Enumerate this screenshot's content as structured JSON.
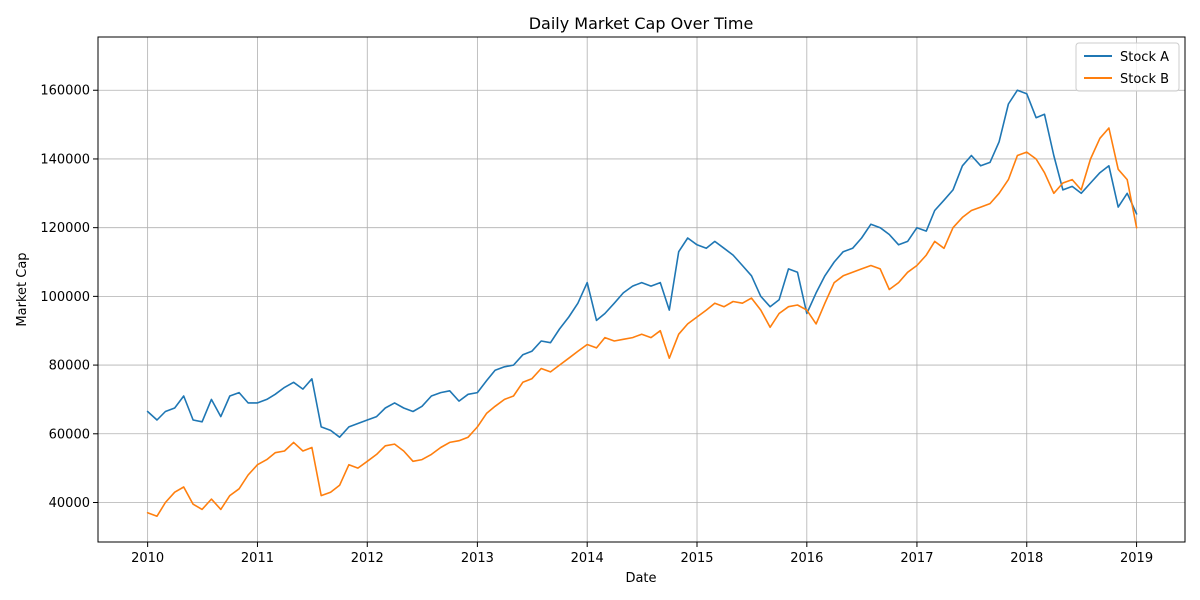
{
  "chart_data": {
    "type": "line",
    "title": "Daily Market Cap Over Time",
    "xlabel": "Date",
    "ylabel": "Market Cap",
    "xlim": [
      "2009-07-20",
      "2019-06-11"
    ],
    "ylim": [
      28500,
      175500
    ],
    "x_ticks": [
      "2010",
      "2011",
      "2012",
      "2013",
      "2014",
      "2015",
      "2016",
      "2017",
      "2018",
      "2019"
    ],
    "y_ticks": [
      40000,
      60000,
      80000,
      100000,
      120000,
      140000,
      160000
    ],
    "grid": true,
    "legend_position": "top-right",
    "series": [
      {
        "name": "Stock A",
        "color": "#1f77b4",
        "points": [
          [
            "2010-01-01",
            66500
          ],
          [
            "2010-02-01",
            64000
          ],
          [
            "2010-03-01",
            66500
          ],
          [
            "2010-04-01",
            67500
          ],
          [
            "2010-05-01",
            71000
          ],
          [
            "2010-06-01",
            64000
          ],
          [
            "2010-07-01",
            63500
          ],
          [
            "2010-08-01",
            70000
          ],
          [
            "2010-09-01",
            65000
          ],
          [
            "2010-10-01",
            71000
          ],
          [
            "2010-11-01",
            72000
          ],
          [
            "2010-12-01",
            69000
          ],
          [
            "2011-01-01",
            69000
          ],
          [
            "2011-02-01",
            70000
          ],
          [
            "2011-03-01",
            71500
          ],
          [
            "2011-04-01",
            73500
          ],
          [
            "2011-05-01",
            75000
          ],
          [
            "2011-06-01",
            73000
          ],
          [
            "2011-07-01",
            76000
          ],
          [
            "2011-08-01",
            62000
          ],
          [
            "2011-09-01",
            61000
          ],
          [
            "2011-10-01",
            59000
          ],
          [
            "2011-11-01",
            62000
          ],
          [
            "2011-12-01",
            63000
          ],
          [
            "2012-01-01",
            64000
          ],
          [
            "2012-02-01",
            65000
          ],
          [
            "2012-03-01",
            67500
          ],
          [
            "2012-04-01",
            69000
          ],
          [
            "2012-05-01",
            67500
          ],
          [
            "2012-06-01",
            66500
          ],
          [
            "2012-07-01",
            68000
          ],
          [
            "2012-08-01",
            71000
          ],
          [
            "2012-09-01",
            72000
          ],
          [
            "2012-10-01",
            72500
          ],
          [
            "2012-11-01",
            69500
          ],
          [
            "2012-12-01",
            71500
          ],
          [
            "2013-01-01",
            72000
          ],
          [
            "2013-02-01",
            75500
          ],
          [
            "2013-03-01",
            78500
          ],
          [
            "2013-04-01",
            79500
          ],
          [
            "2013-05-01",
            80000
          ],
          [
            "2013-06-01",
            83000
          ],
          [
            "2013-07-01",
            84000
          ],
          [
            "2013-08-01",
            87000
          ],
          [
            "2013-09-01",
            86500
          ],
          [
            "2013-10-01",
            90500
          ],
          [
            "2013-11-01",
            94000
          ],
          [
            "2013-12-01",
            98000
          ],
          [
            "2014-01-01",
            104000
          ],
          [
            "2014-02-01",
            93000
          ],
          [
            "2014-03-01",
            95000
          ],
          [
            "2014-04-01",
            98000
          ],
          [
            "2014-05-01",
            101000
          ],
          [
            "2014-06-01",
            103000
          ],
          [
            "2014-07-01",
            104000
          ],
          [
            "2014-08-01",
            103000
          ],
          [
            "2014-09-01",
            104000
          ],
          [
            "2014-10-01",
            96000
          ],
          [
            "2014-11-01",
            113000
          ],
          [
            "2014-12-01",
            117000
          ],
          [
            "2015-01-01",
            115000
          ],
          [
            "2015-02-01",
            114000
          ],
          [
            "2015-03-01",
            116000
          ],
          [
            "2015-04-01",
            114000
          ],
          [
            "2015-05-01",
            112000
          ],
          [
            "2015-06-01",
            109000
          ],
          [
            "2015-07-01",
            106000
          ],
          [
            "2015-08-01",
            100000
          ],
          [
            "2015-09-01",
            97000
          ],
          [
            "2015-10-01",
            99000
          ],
          [
            "2015-11-01",
            108000
          ],
          [
            "2015-12-01",
            107000
          ],
          [
            "2016-01-01",
            95000
          ],
          [
            "2016-02-01",
            101000
          ],
          [
            "2016-03-01",
            106000
          ],
          [
            "2016-04-01",
            110000
          ],
          [
            "2016-05-01",
            113000
          ],
          [
            "2016-06-01",
            114000
          ],
          [
            "2016-07-01",
            117000
          ],
          [
            "2016-08-01",
            121000
          ],
          [
            "2016-09-01",
            120000
          ],
          [
            "2016-10-01",
            118000
          ],
          [
            "2016-11-01",
            115000
          ],
          [
            "2016-12-01",
            116000
          ],
          [
            "2017-01-01",
            120000
          ],
          [
            "2017-02-01",
            119000
          ],
          [
            "2017-03-01",
            125000
          ],
          [
            "2017-04-01",
            128000
          ],
          [
            "2017-05-01",
            131000
          ],
          [
            "2017-06-01",
            138000
          ],
          [
            "2017-07-01",
            141000
          ],
          [
            "2017-08-01",
            138000
          ],
          [
            "2017-09-01",
            139000
          ],
          [
            "2017-10-01",
            145000
          ],
          [
            "2017-11-01",
            156000
          ],
          [
            "2017-12-01",
            160000
          ],
          [
            "2018-01-01",
            159000
          ],
          [
            "2018-02-01",
            152000
          ],
          [
            "2018-03-01",
            153000
          ],
          [
            "2018-04-01",
            141000
          ],
          [
            "2018-05-01",
            131000
          ],
          [
            "2018-06-01",
            132000
          ],
          [
            "2018-07-01",
            130000
          ],
          [
            "2018-08-01",
            133000
          ],
          [
            "2018-09-01",
            136000
          ],
          [
            "2018-10-01",
            138000
          ],
          [
            "2018-11-01",
            126000
          ],
          [
            "2018-12-01",
            130000
          ],
          [
            "2019-01-01",
            124000
          ]
        ]
      },
      {
        "name": "Stock B",
        "color": "#ff7f0e",
        "points": [
          [
            "2010-01-01",
            37000
          ],
          [
            "2010-02-01",
            36000
          ],
          [
            "2010-03-01",
            40000
          ],
          [
            "2010-04-01",
            43000
          ],
          [
            "2010-05-01",
            44500
          ],
          [
            "2010-06-01",
            39500
          ],
          [
            "2010-07-01",
            38000
          ],
          [
            "2010-08-01",
            41000
          ],
          [
            "2010-09-01",
            38000
          ],
          [
            "2010-10-01",
            42000
          ],
          [
            "2010-11-01",
            44000
          ],
          [
            "2010-12-01",
            48000
          ],
          [
            "2011-01-01",
            51000
          ],
          [
            "2011-02-01",
            52500
          ],
          [
            "2011-03-01",
            54500
          ],
          [
            "2011-04-01",
            55000
          ],
          [
            "2011-05-01",
            57500
          ],
          [
            "2011-06-01",
            55000
          ],
          [
            "2011-07-01",
            56000
          ],
          [
            "2011-08-01",
            42000
          ],
          [
            "2011-09-01",
            43000
          ],
          [
            "2011-10-01",
            45000
          ],
          [
            "2011-11-01",
            51000
          ],
          [
            "2011-12-01",
            50000
          ],
          [
            "2012-01-01",
            52000
          ],
          [
            "2012-02-01",
            54000
          ],
          [
            "2012-03-01",
            56500
          ],
          [
            "2012-04-01",
            57000
          ],
          [
            "2012-05-01",
            55000
          ],
          [
            "2012-06-01",
            52000
          ],
          [
            "2012-07-01",
            52500
          ],
          [
            "2012-08-01",
            54000
          ],
          [
            "2012-09-01",
            56000
          ],
          [
            "2012-10-01",
            57500
          ],
          [
            "2012-11-01",
            58000
          ],
          [
            "2012-12-01",
            59000
          ],
          [
            "2013-01-01",
            62000
          ],
          [
            "2013-02-01",
            66000
          ],
          [
            "2013-03-01",
            68000
          ],
          [
            "2013-04-01",
            70000
          ],
          [
            "2013-05-01",
            71000
          ],
          [
            "2013-06-01",
            75000
          ],
          [
            "2013-07-01",
            76000
          ],
          [
            "2013-08-01",
            79000
          ],
          [
            "2013-09-01",
            78000
          ],
          [
            "2013-10-01",
            80000
          ],
          [
            "2013-11-01",
            82000
          ],
          [
            "2013-12-01",
            84000
          ],
          [
            "2014-01-01",
            86000
          ],
          [
            "2014-02-01",
            85000
          ],
          [
            "2014-03-01",
            88000
          ],
          [
            "2014-04-01",
            87000
          ],
          [
            "2014-05-01",
            87500
          ],
          [
            "2014-06-01",
            88000
          ],
          [
            "2014-07-01",
            89000
          ],
          [
            "2014-08-01",
            88000
          ],
          [
            "2014-09-01",
            90000
          ],
          [
            "2014-10-01",
            82000
          ],
          [
            "2014-11-01",
            89000
          ],
          [
            "2014-12-01",
            92000
          ],
          [
            "2015-01-01",
            94000
          ],
          [
            "2015-02-01",
            96000
          ],
          [
            "2015-03-01",
            98000
          ],
          [
            "2015-04-01",
            97000
          ],
          [
            "2015-05-01",
            98500
          ],
          [
            "2015-06-01",
            98000
          ],
          [
            "2015-07-01",
            99500
          ],
          [
            "2015-08-01",
            96000
          ],
          [
            "2015-09-01",
            91000
          ],
          [
            "2015-10-01",
            95000
          ],
          [
            "2015-11-01",
            97000
          ],
          [
            "2015-12-01",
            97500
          ],
          [
            "2016-01-01",
            96000
          ],
          [
            "2016-02-01",
            92000
          ],
          [
            "2016-03-01",
            98000
          ],
          [
            "2016-04-01",
            104000
          ],
          [
            "2016-05-01",
            106000
          ],
          [
            "2016-06-01",
            107000
          ],
          [
            "2016-07-01",
            108000
          ],
          [
            "2016-08-01",
            109000
          ],
          [
            "2016-09-01",
            108000
          ],
          [
            "2016-10-01",
            102000
          ],
          [
            "2016-11-01",
            104000
          ],
          [
            "2016-12-01",
            107000
          ],
          [
            "2017-01-01",
            109000
          ],
          [
            "2017-02-01",
            112000
          ],
          [
            "2017-03-01",
            116000
          ],
          [
            "2017-04-01",
            114000
          ],
          [
            "2017-05-01",
            120000
          ],
          [
            "2017-06-01",
            123000
          ],
          [
            "2017-07-01",
            125000
          ],
          [
            "2017-08-01",
            126000
          ],
          [
            "2017-09-01",
            127000
          ],
          [
            "2017-10-01",
            130000
          ],
          [
            "2017-11-01",
            134000
          ],
          [
            "2017-12-01",
            141000
          ],
          [
            "2018-01-01",
            142000
          ],
          [
            "2018-02-01",
            140000
          ],
          [
            "2018-03-01",
            136000
          ],
          [
            "2018-04-01",
            130000
          ],
          [
            "2018-05-01",
            133000
          ],
          [
            "2018-06-01",
            134000
          ],
          [
            "2018-07-01",
            131000
          ],
          [
            "2018-08-01",
            140000
          ],
          [
            "2018-09-01",
            146000
          ],
          [
            "2018-10-01",
            149000
          ],
          [
            "2018-11-01",
            137000
          ],
          [
            "2018-12-01",
            134000
          ],
          [
            "2019-01-01",
            120000
          ]
        ]
      }
    ]
  }
}
